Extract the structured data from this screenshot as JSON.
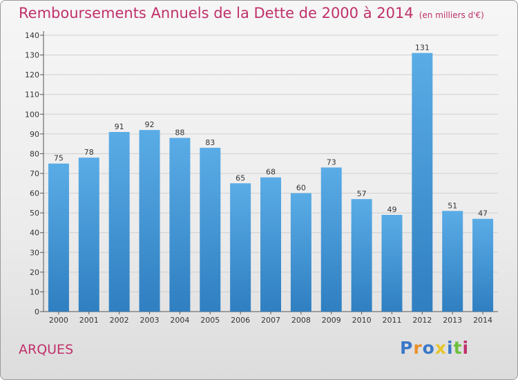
{
  "chart_data": {
    "type": "bar",
    "title": "Remboursements Annuels de la Dette de 2000 à 2014",
    "unit": "(en milliers d'€)",
    "categories": [
      "2000",
      "2001",
      "2002",
      "2003",
      "2004",
      "2005",
      "2006",
      "2007",
      "2008",
      "2009",
      "2010",
      "2011",
      "2012",
      "2013",
      "2014"
    ],
    "values": [
      75,
      78,
      91,
      92,
      88,
      83,
      65,
      68,
      60,
      73,
      57,
      49,
      131,
      51,
      47
    ],
    "ylim": [
      0,
      140
    ],
    "yticks": [
      0,
      10,
      20,
      30,
      40,
      50,
      60,
      70,
      80,
      90,
      100,
      110,
      120,
      130,
      140
    ],
    "grid": true,
    "xlabel": "",
    "ylabel": ""
  },
  "commune": "ARQUES",
  "logo": {
    "text": "Proxiti",
    "letters": [
      "P",
      "r",
      "o",
      "x",
      "i",
      "t",
      "i"
    ],
    "colors": [
      "#3a78c8",
      "#e8912a",
      "#3a78c8",
      "#e8c52a",
      "#3a78c8",
      "#6cbf3a",
      "#c0306a"
    ]
  },
  "colors": {
    "bar_top": "#5aace6",
    "bar_bottom": "#2f7fc1",
    "grid": "#cfcfcf",
    "accent": "#c0306a"
  }
}
